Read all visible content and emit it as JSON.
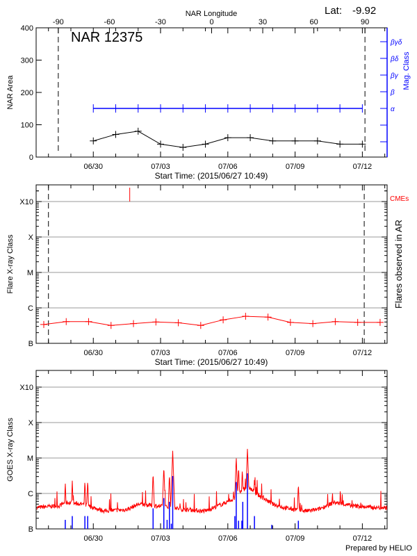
{
  "header": {
    "lat_label": "Lat:",
    "lat_value": "-9.92",
    "region_title": "NAR 12375",
    "footer": "Prepared by HELIO"
  },
  "colors": {
    "area": "#000000",
    "mag": "#0000ff",
    "flare": "#ff0000",
    "goes_long": "#ff0000",
    "goes_short": "#0000ff",
    "grid": "#999999",
    "cme": "#ff0000"
  },
  "chart_data": [
    {
      "type": "line",
      "title": "NAR 12375",
      "xlabel": "Start Time: (2015/06/27 10:49)",
      "x_start": "06/27 10:49",
      "x_end": "07/13 02:30",
      "x_tick_labels": [
        "06/30",
        "07/03",
        "07/06",
        "07/09",
        "07/12"
      ],
      "top_axis": {
        "label": "NAR Longitude",
        "ticks": [
          "-90",
          "-60",
          "-30",
          "0",
          "30",
          "60",
          "90"
        ],
        "range": [
          -103,
          103
        ],
        "limb_lines": [
          -90,
          90
        ]
      },
      "ylabel": "NAR Area",
      "ylim": [
        0,
        400
      ],
      "y_ticks": [
        "0",
        "100",
        "200",
        "300",
        "400"
      ],
      "right_axis": {
        "label": "Mag. Class",
        "levels": [
          "",
          "",
          "α",
          "β",
          "βγ",
          "βδ",
          "βγδ"
        ]
      },
      "series": [
        {
          "key": "area",
          "x": [
            "06/30 00:00",
            "07/01 00:00",
            "07/02 00:00",
            "07/03 00:00",
            "07/04 00:00",
            "07/05 00:00",
            "07/06 00:00",
            "07/07 00:00",
            "07/08 00:00",
            "07/09 00:00",
            "07/10 00:00",
            "07/11 00:00",
            "07/12 00:00"
          ],
          "values": [
            50,
            70,
            80,
            40,
            30,
            40,
            60,
            60,
            50,
            50,
            50,
            40,
            40
          ]
        },
        {
          "key": "mag_class",
          "x": [
            "06/30 00:00",
            "07/01 00:00",
            "07/02 00:00",
            "07/03 00:00",
            "07/04 00:00",
            "07/05 00:00",
            "07/06 00:00",
            "07/07 00:00",
            "07/08 00:00",
            "07/09 00:00",
            "07/10 00:00",
            "07/11 00:00",
            "07/12 00:00"
          ],
          "values": [
            "α",
            "α",
            "α",
            "α",
            "α",
            "α",
            "α",
            "α",
            "α",
            "α",
            "α",
            "α",
            "α"
          ]
        }
      ],
      "grid": false
    },
    {
      "type": "line",
      "xlabel": "Start Time: (2015/06/27 10:49)",
      "x_tick_labels": [
        "06/30",
        "07/03",
        "07/06",
        "07/09",
        "07/12"
      ],
      "ylabel": "Flare X-ray Class",
      "y_ticks": [
        "B",
        "C",
        "M",
        "X",
        "X10"
      ],
      "y_scale": "log",
      "right_label": "Flares observed in AR",
      "cme_label": "CMEs",
      "cmes": [
        "07/01 15:00"
      ],
      "limb_times": [
        "06/28 00:00",
        "07/12 02:00"
      ],
      "series": [
        {
          "key": "flares",
          "x": [
            "06/27 19:00",
            "06/28 19:00",
            "06/29 19:00",
            "06/30 19:00",
            "07/01 19:00",
            "07/02 19:00",
            "07/03 19:00",
            "07/04 19:00",
            "07/05 19:00",
            "07/06 19:00",
            "07/07 19:00",
            "07/08 19:00",
            "07/09 19:00",
            "07/10 19:00",
            "07/11 19:00",
            "07/12 19:00"
          ],
          "values": [
            "B3.4",
            "B4.1",
            "B4.1",
            "B3.2",
            "B3.6",
            "B4.0",
            "B3.8",
            "B3.2",
            "B4.6",
            "B5.8",
            "B5.5",
            "B3.9",
            "B3.6",
            "B4.1",
            "B3.9",
            "B3.9"
          ]
        }
      ],
      "grid": true
    },
    {
      "type": "line",
      "x_tick_labels": [
        "06/30",
        "07/03",
        "07/06",
        "07/09",
        "07/12"
      ],
      "ylabel": "GOES X-ray Class",
      "y_ticks": [
        "B",
        "C",
        "M",
        "X",
        "X10"
      ],
      "y_scale": "log",
      "grid": true,
      "series": [
        {
          "key": "goes_long_baseline",
          "x": [
            "06/27 11:00",
            "06/28 12:00",
            "06/28 18:00",
            "06/29 12:00",
            "06/30 12:00",
            "07/01 12:00",
            "07/02 00:00",
            "07/02 18:00",
            "07/03 12:00",
            "07/04 00:00",
            "07/05 00:00",
            "07/05 18:00",
            "07/06 06:00",
            "07/06 21:00",
            "07/07 06:00",
            "07/08 00:00",
            "07/08 12:00",
            "07/09 00:00",
            "07/09 12:00",
            "07/10 00:00",
            "07/10 18:00",
            "07/11 12:00",
            "07/12 12:00",
            "07/13 02:30"
          ],
          "values": [
            "B4.0",
            "B4.5",
            "B5.6",
            "B5.0",
            "B3.2",
            "B3.5",
            "B5.0",
            "B4.5",
            "B4.0",
            "B3.5",
            "B3.2",
            "B5.0",
            "B7.0",
            "C1.6",
            "C1.0",
            "B5.0",
            "B4.0",
            "B3.5",
            "B3.2",
            "B3.5",
            "B5.6",
            "B4.5",
            "B4.0",
            "B4.0"
          ]
        },
        {
          "key": "goes_long_peaks",
          "x": [
            "06/28 18:00",
            "06/29 01:30",
            "06/29 15:00",
            "06/29 18:00",
            "07/02 16:00",
            "07/03 03:30",
            "07/03 09:30",
            "07/03 13:00",
            "07/06 09:00",
            "07/06 11:30",
            "07/06 15:30",
            "07/06 21:00",
            "07/07 04:30",
            "07/09 03:30",
            "07/10 16:00"
          ],
          "values": [
            "C2.1",
            "C2.3",
            "C2.4",
            "C2.5",
            "C4.0",
            "C6.0",
            "C3.7",
            "M1.6",
            "M1.1",
            "C6.0",
            "C5.0",
            "M1.9",
            "C2.8",
            "C2.0",
            "C1.2"
          ]
        },
        {
          "key": "goes_short",
          "x": [
            "06/28 18:00",
            "06/29 01:30",
            "06/29 15:00",
            "06/29 18:00",
            "07/02 16:00",
            "07/03 03:30",
            "07/03 07:00",
            "07/03 09:30",
            "07/03 11:30",
            "07/03 13:00",
            "07/06 07:30",
            "07/06 09:00",
            "07/06 11:30",
            "07/06 15:00",
            "07/06 16:00",
            "07/06 21:00",
            "07/07 04:30",
            "07/07 23:00",
            "07/09 03:30"
          ],
          "values": [
            "B1.8",
            "B2.3",
            "B2.3",
            "B2.3",
            "B3.8",
            "B7.4",
            "B1.8",
            "B5.8",
            "B1.4",
            "C3.1",
            "B2.3",
            "C2.1",
            "B1.7",
            "B1.7",
            "B5.8",
            "C3.7",
            "B2.3",
            "B1.3",
            "B1.7"
          ]
        }
      ]
    }
  ]
}
